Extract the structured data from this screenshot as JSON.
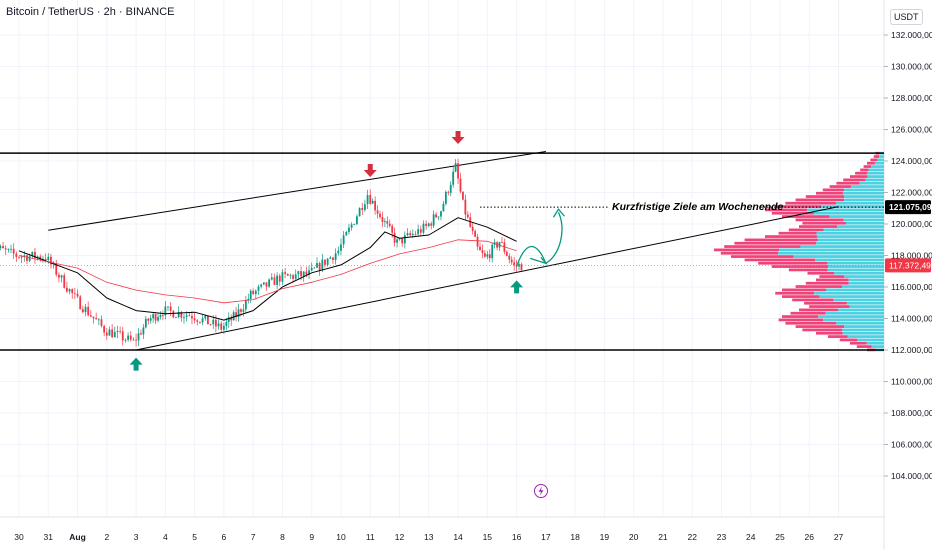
{
  "header": {
    "symbol": "Bitcoin / TetherUS · 2h · BINANCE"
  },
  "price_axis": {
    "unit": "USDT",
    "labels": [
      "132.000,00",
      "130.000,00",
      "128.000,00",
      "126.000,00",
      "124.000,00",
      "122.000,00",
      "120.000,00",
      "118.000,00",
      "116.000,00",
      "114.000,00",
      "112.000,00",
      "110.000,00",
      "108.000,00",
      "106.000,00",
      "104.000,00"
    ],
    "target_price_label": "121.075,09",
    "last_price_label": "117.372,49"
  },
  "time_axis": {
    "labels": [
      "30",
      "31",
      "Aug",
      "2",
      "3",
      "4",
      "5",
      "6",
      "7",
      "8",
      "9",
      "10",
      "11",
      "12",
      "13",
      "14",
      "15",
      "16",
      "17",
      "18",
      "19",
      "20",
      "21",
      "22",
      "23",
      "24",
      "25",
      "26",
      "27"
    ]
  },
  "annotation": {
    "text": "Kurzfristige Ziele am Wochenende"
  },
  "colors": {
    "up": "#089981",
    "down": "#f23645",
    "ma_fast": "#000000",
    "ma_slow": "#f23645",
    "arrow_down": "#d32f3f",
    "arrow_up": "#089981",
    "vp_up": "#4dd0e1",
    "vp_down": "#f0437a",
    "target_label_bg": "#000000",
    "price_label_bg": "#f23645",
    "lightning": "#9c27b0"
  },
  "icons": [
    "arrow-down-icon",
    "arrow-up-icon",
    "lightning-icon"
  ],
  "chart_data": {
    "type": "candlestick",
    "price_range": [
      102000,
      133500
    ],
    "x_range_days": [
      "2025-07-29",
      "2025-08-27"
    ],
    "current_price": 117372.49,
    "target_price": 121075.09,
    "channel": {
      "upper_line": [
        [
          "2025-07-31",
          119600
        ],
        [
          "2025-08-17",
          124600
        ]
      ],
      "lower_line": [
        [
          "2025-08-03",
          112000
        ],
        [
          "2025-08-27",
          121100
        ]
      ],
      "top_horizontal": 124500,
      "bottom_horizontal": 112000
    },
    "projection": [
      [
        "2025-08-16",
        117300
      ],
      [
        "2025-08-16 12:00",
        118200
      ],
      [
        "2025-08-17",
        117500
      ],
      [
        "2025-08-17 12:00",
        121000
      ]
    ],
    "markers": [
      {
        "kind": "down",
        "time": "2025-08-11",
        "price": 123300
      },
      {
        "kind": "down",
        "time": "2025-08-14",
        "price": 125400
      },
      {
        "kind": "up",
        "time": "2025-08-03",
        "price": 111200
      },
      {
        "kind": "up",
        "time": "2025-08-16",
        "price": 116100
      }
    ],
    "closes": [
      [
        "2025-07-29",
        118700
      ],
      [
        "2025-07-30",
        118000
      ],
      [
        "2025-07-31",
        117900
      ],
      [
        "2025-08-01",
        115300
      ],
      [
        "2025-08-02",
        113300
      ],
      [
        "2025-08-03",
        112500
      ],
      [
        "2025-08-03 12:00",
        113900
      ],
      [
        "2025-08-04",
        114500
      ],
      [
        "2025-08-05",
        114200
      ],
      [
        "2025-08-06",
        113400
      ],
      [
        "2025-08-06 12:00",
        114200
      ],
      [
        "2025-08-07",
        115500
      ],
      [
        "2025-08-08",
        116600
      ],
      [
        "2025-08-09",
        116800
      ],
      [
        "2025-08-10",
        118300
      ],
      [
        "2025-08-11",
        121900
      ],
      [
        "2025-08-11 12:00",
        120300
      ],
      [
        "2025-08-12",
        118800
      ],
      [
        "2025-08-13",
        119800
      ],
      [
        "2025-08-13 12:00",
        120900
      ],
      [
        "2025-08-14",
        123600
      ],
      [
        "2025-08-14 06:00",
        121200
      ],
      [
        "2025-08-14 18:00",
        118400
      ],
      [
        "2025-08-15",
        117800
      ],
      [
        "2025-08-15 12:00",
        118900
      ],
      [
        "2025-08-16",
        117300
      ],
      [
        "2025-08-16 06:00",
        117372.49
      ]
    ],
    "moving_averages": [
      {
        "color": "#000000",
        "points": [
          [
            "2025-07-30",
            118300
          ],
          [
            "2025-08-01",
            116900
          ],
          [
            "2025-08-02",
            115300
          ],
          [
            "2025-08-03",
            114500
          ],
          [
            "2025-08-04",
            114300
          ],
          [
            "2025-08-05",
            114400
          ],
          [
            "2025-08-06",
            113900
          ],
          [
            "2025-08-07",
            114500
          ],
          [
            "2025-08-08",
            116000
          ],
          [
            "2025-08-09",
            116900
          ],
          [
            "2025-08-10",
            117400
          ],
          [
            "2025-08-11",
            118500
          ],
          [
            "2025-08-11 12:00",
            119500
          ],
          [
            "2025-08-12",
            119100
          ],
          [
            "2025-08-13",
            119300
          ],
          [
            "2025-08-14",
            120400
          ],
          [
            "2025-08-15",
            119800
          ],
          [
            "2025-08-16",
            118900
          ]
        ]
      },
      {
        "color": "#f23645",
        "points": [
          [
            "2025-07-30",
            118000
          ],
          [
            "2025-08-01",
            117200
          ],
          [
            "2025-08-02",
            116300
          ],
          [
            "2025-08-03",
            115800
          ],
          [
            "2025-08-04",
            115500
          ],
          [
            "2025-08-05",
            115300
          ],
          [
            "2025-08-06",
            115000
          ],
          [
            "2025-08-07",
            115200
          ],
          [
            "2025-08-08",
            115900
          ],
          [
            "2025-08-09",
            116300
          ],
          [
            "2025-08-10",
            116800
          ],
          [
            "2025-08-11",
            117500
          ],
          [
            "2025-08-12",
            118100
          ],
          [
            "2025-08-13",
            118500
          ],
          [
            "2025-08-14",
            119000
          ],
          [
            "2025-08-15",
            118900
          ],
          [
            "2025-08-16",
            118300
          ]
        ]
      }
    ],
    "volume_profile": {
      "price_from": 111900,
      "price_to": 124600,
      "rows": 60,
      "comment_free_shape": [
        0.1,
        0.16,
        0.2,
        0.26,
        0.33,
        0.4,
        0.48,
        0.52,
        0.58,
        0.62,
        0.6,
        0.55,
        0.5,
        0.44,
        0.47,
        0.54,
        0.6,
        0.64,
        0.6,
        0.52,
        0.46,
        0.4,
        0.38,
        0.45,
        0.56,
        0.66,
        0.74,
        0.82,
        0.9,
        0.96,
        1.0,
        0.94,
        0.88,
        0.82,
        0.7,
        0.62,
        0.56,
        0.5,
        0.48,
        0.52,
        0.6,
        0.66,
        0.7,
        0.64,
        0.58,
        0.52,
        0.46,
        0.4,
        0.36,
        0.32,
        0.28,
        0.24,
        0.2,
        0.17,
        0.14,
        0.12,
        0.1,
        0.08,
        0.06,
        0.05
      ],
      "up_share": 0.55
    }
  }
}
